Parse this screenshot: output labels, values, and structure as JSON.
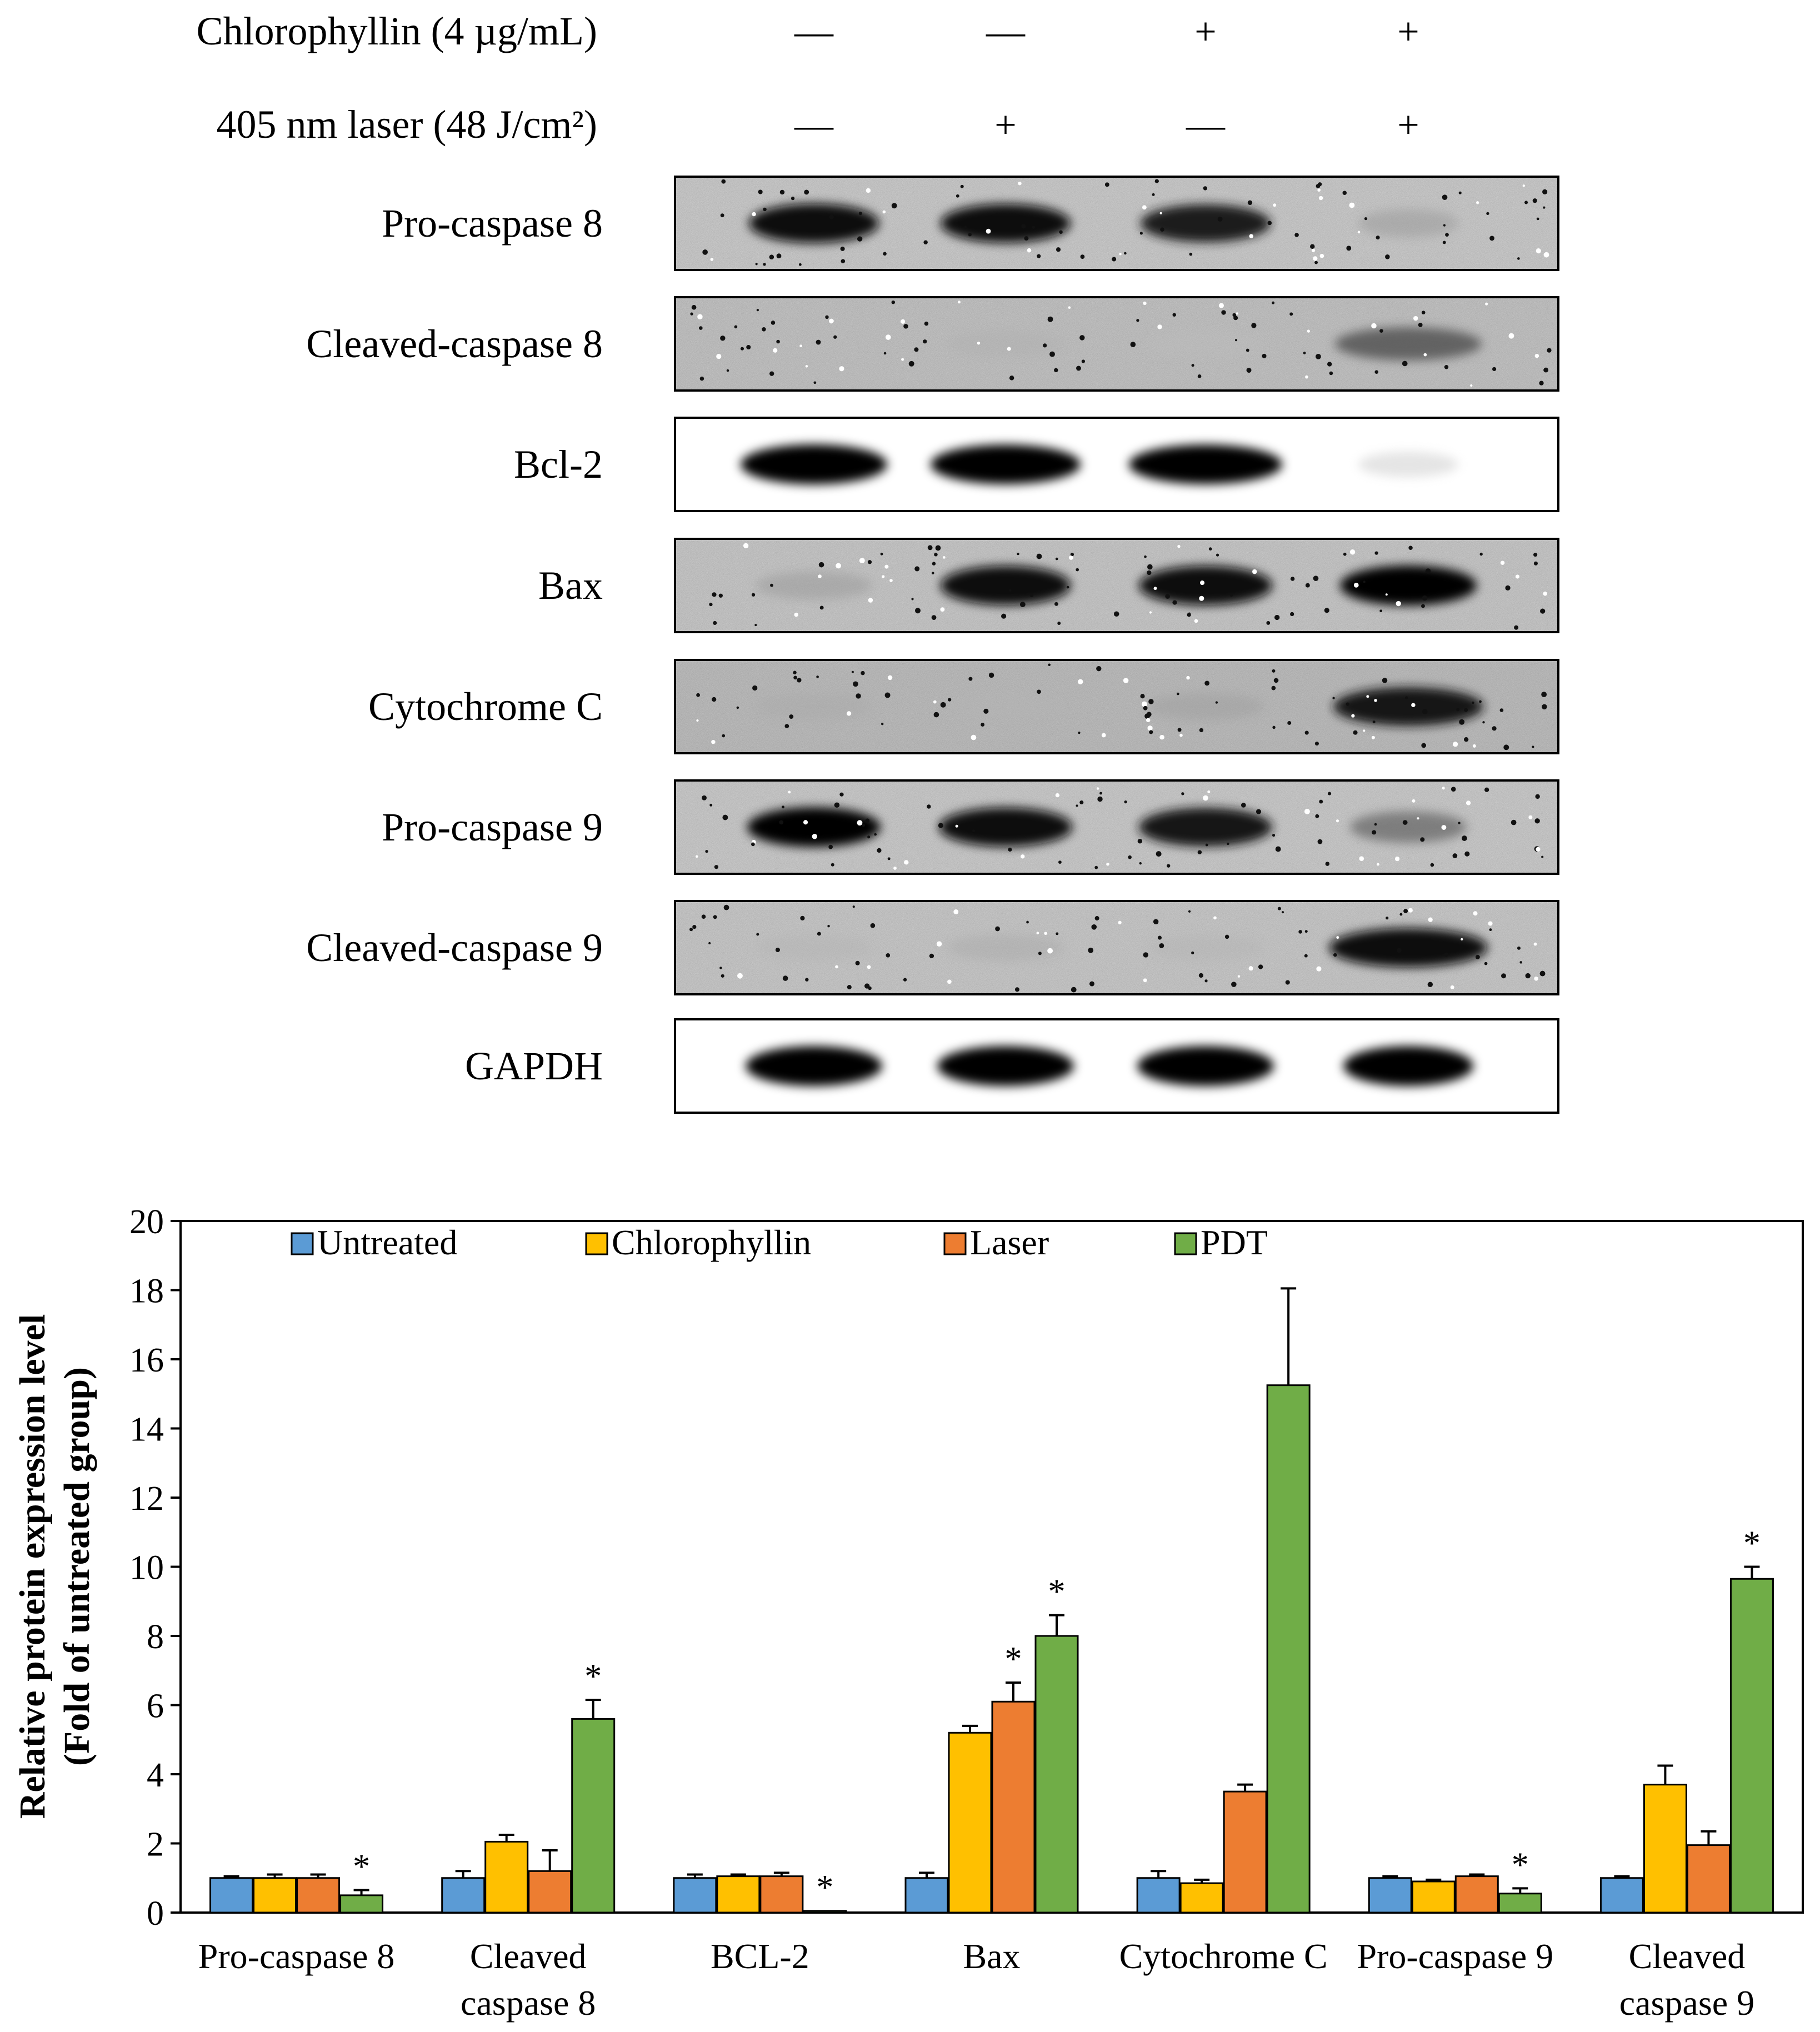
{
  "treatment_header": {
    "rows": [
      {
        "label": "Chlorophyllin (4 µg/mL)",
        "marks": [
          "—",
          "—",
          "+",
          "+"
        ]
      },
      {
        "label": "405 nm laser (48 J/cm²)",
        "marks": [
          "—",
          "+",
          "—",
          "+"
        ]
      }
    ]
  },
  "blot": {
    "rows": [
      {
        "label": "Pro-caspase  8",
        "style": "noisy",
        "bands": [
          0.95,
          0.92,
          0.85,
          0.22
        ],
        "widths": [
          0.78,
          0.78,
          0.78,
          0.6
        ],
        "bg": "#d2d2d2"
      },
      {
        "label": "Cleaved-caspase  8",
        "style": "noisy",
        "bands": [
          0.0,
          0.12,
          0.06,
          0.55
        ],
        "widths": [
          0.7,
          0.7,
          0.7,
          0.88
        ],
        "bg": "#cacaca"
      },
      {
        "label": "Bcl-2",
        "style": "clean",
        "bands": [
          1.0,
          0.97,
          0.97,
          0.05
        ],
        "widths": [
          0.88,
          0.9,
          0.92,
          0.6
        ],
        "bg": "#ffffff"
      },
      {
        "label": "Bax",
        "style": "noisy",
        "bands": [
          0.22,
          0.95,
          0.95,
          1.0
        ],
        "widths": [
          0.7,
          0.78,
          0.8,
          0.82
        ],
        "bg": "#cfcfcf"
      },
      {
        "label": "Cytochrome  C",
        "style": "noisy",
        "bands": [
          0.15,
          0.1,
          0.2,
          0.9
        ],
        "widths": [
          0.7,
          0.7,
          0.7,
          0.9
        ],
        "bg": "#c4c4c4"
      },
      {
        "label": "Pro-caspase  9",
        "style": "noisy",
        "bands": [
          0.97,
          0.93,
          0.9,
          0.45
        ],
        "widths": [
          0.8,
          0.8,
          0.8,
          0.7
        ],
        "bg": "#d2d2d2"
      },
      {
        "label": "Cleaved-caspase  9",
        "style": "noisy",
        "bands": [
          0.1,
          0.15,
          0.1,
          0.92
        ],
        "widths": [
          0.7,
          0.7,
          0.7,
          0.95
        ],
        "bg": "#d0d0d0"
      },
      {
        "label": "GAPDH",
        "style": "clean",
        "bands": [
          1.0,
          1.0,
          1.0,
          1.0
        ],
        "widths": [
          0.82,
          0.82,
          0.82,
          0.78
        ],
        "bg": "#ffffff"
      }
    ]
  },
  "chart_data": {
    "type": "bar",
    "categories": [
      "Pro-caspase 8",
      "Cleaved\ncaspase 8",
      "BCL-2",
      "Bax",
      "Cytochrome C",
      "Pro-caspase 9",
      "Cleaved\ncaspase 9"
    ],
    "series": [
      {
        "name": "Untreated",
        "color": "#5b9bd5",
        "values": [
          1.0,
          1.0,
          1.0,
          1.0,
          1.0,
          1.0,
          1.0
        ],
        "errors": [
          0.05,
          0.2,
          0.1,
          0.15,
          0.2,
          0.05,
          0.05
        ]
      },
      {
        "name": "Chlorophyllin",
        "color": "#ffc000",
        "values": [
          1.0,
          2.05,
          1.05,
          5.2,
          0.85,
          0.9,
          3.7
        ],
        "errors": [
          0.1,
          0.2,
          0.05,
          0.2,
          0.1,
          0.05,
          0.55
        ]
      },
      {
        "name": "Laser",
        "color": "#ed7d31",
        "values": [
          1.0,
          1.2,
          1.05,
          6.1,
          3.5,
          1.05,
          1.95
        ],
        "errors": [
          0.1,
          0.6,
          0.1,
          0.55,
          0.2,
          0.05,
          0.4
        ]
      },
      {
        "name": "PDT",
        "color": "#70ad47",
        "values": [
          0.5,
          5.6,
          0.05,
          8.0,
          15.25,
          0.55,
          9.65
        ],
        "errors": [
          0.15,
          0.55,
          0.0,
          0.6,
          2.8,
          0.15,
          0.35
        ]
      }
    ],
    "significance": [
      {
        "series": "PDT",
        "category": 0,
        "label": "*"
      },
      {
        "series": "PDT",
        "category": 1,
        "label": "*"
      },
      {
        "series": "PDT",
        "category": 2,
        "label": "*"
      },
      {
        "series": "Laser",
        "category": 3,
        "label": "*"
      },
      {
        "series": "PDT",
        "category": 3,
        "label": "*"
      },
      {
        "series": "PDT",
        "category": 5,
        "label": "*"
      },
      {
        "series": "PDT",
        "category": 6,
        "label": "*"
      }
    ],
    "title": "",
    "xlabel": "",
    "ylabel": "Relative protein expression level",
    "ylabel2": "(Fold of untreated group)",
    "ylim": [
      0,
      20
    ],
    "yticks": [
      0,
      2,
      4,
      6,
      8,
      10,
      12,
      14,
      16,
      18,
      20
    ],
    "legend_position": "top",
    "grid": false
  }
}
